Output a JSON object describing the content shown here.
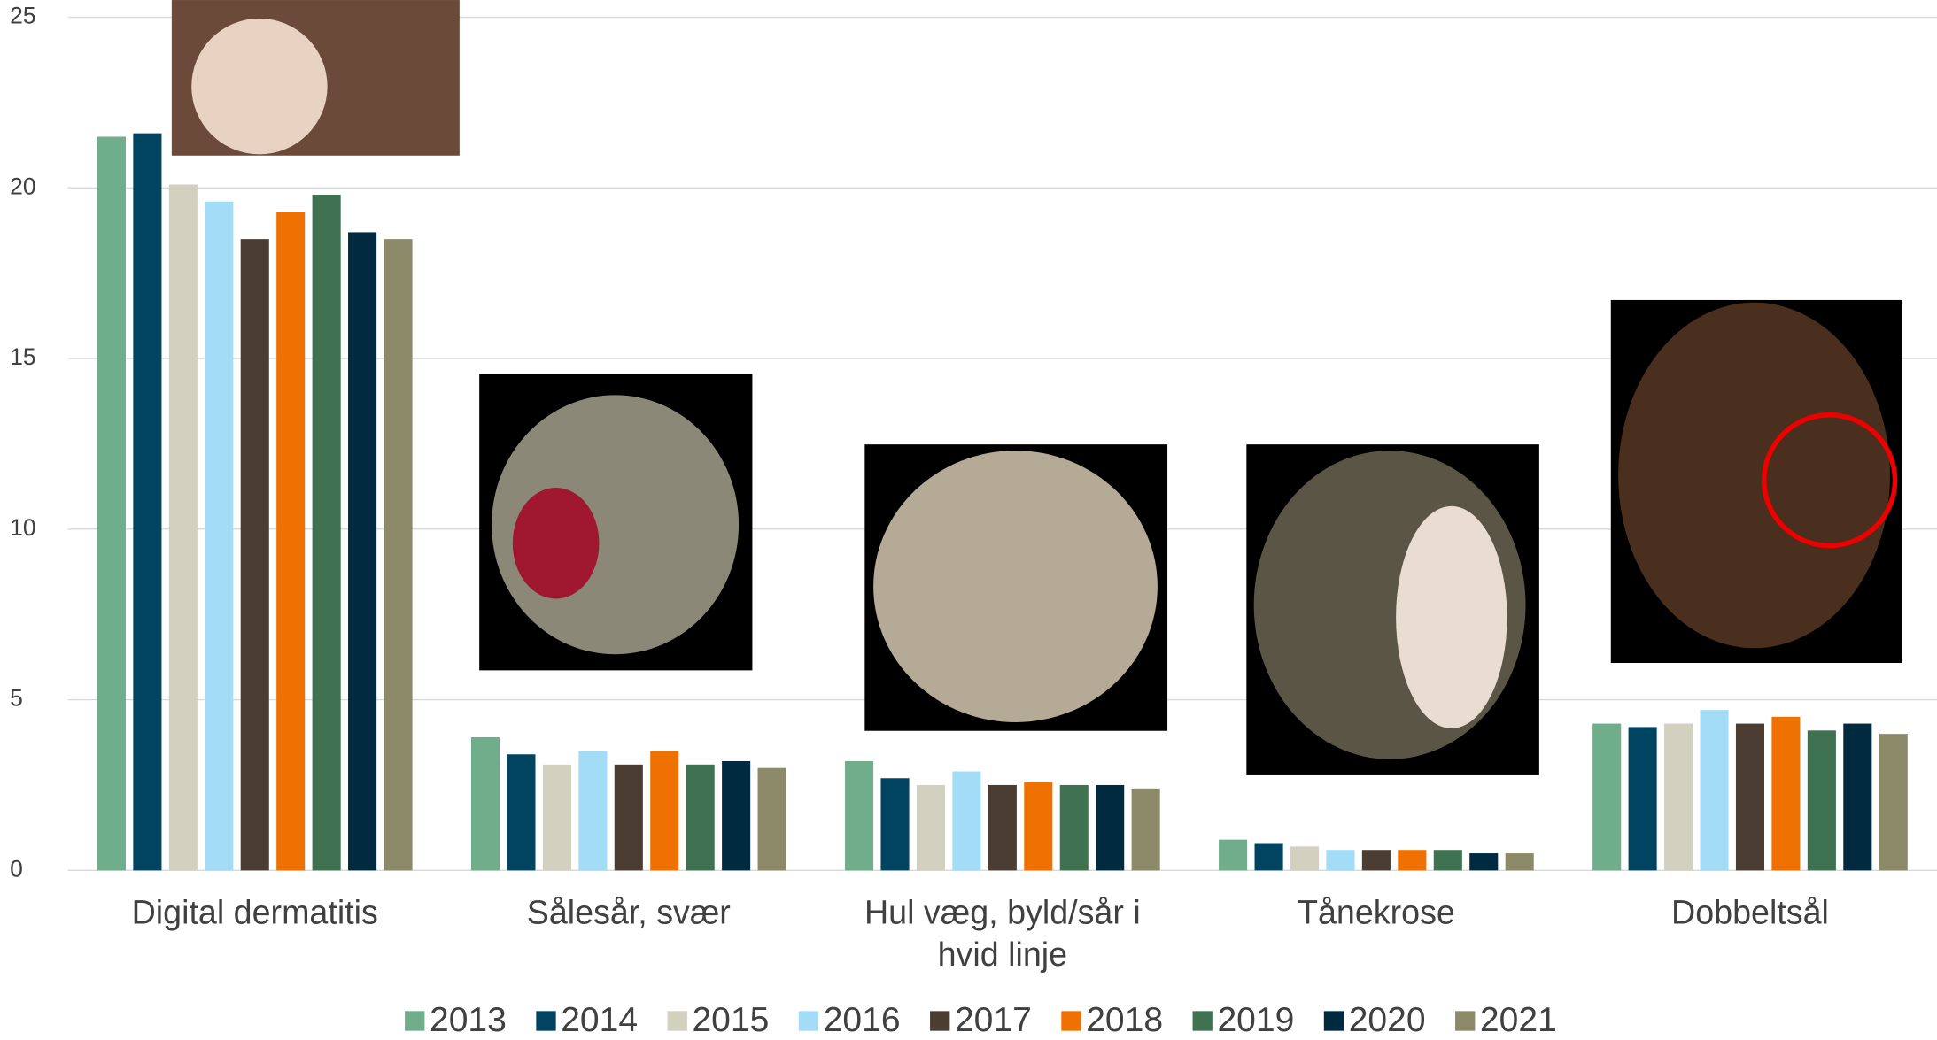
{
  "chart_data": {
    "type": "bar",
    "categories": [
      "Digital dermatitis",
      "Sålesår, svær",
      "Hul væg, byld/sår i hvid linje",
      "Tånekrose",
      "Dobbeltsål"
    ],
    "series": [
      {
        "name": "2013",
        "color": "#70ad8a",
        "values": [
          21.5,
          3.9,
          3.2,
          0.9,
          4.3
        ]
      },
      {
        "name": "2014",
        "color": "#004462",
        "values": [
          21.6,
          3.4,
          2.7,
          0.8,
          4.2
        ]
      },
      {
        "name": "2015",
        "color": "#d2d0bf",
        "values": [
          20.1,
          3.1,
          2.5,
          0.7,
          4.3
        ]
      },
      {
        "name": "2016",
        "color": "#a2dcf6",
        "values": [
          19.6,
          3.5,
          2.9,
          0.6,
          4.7
        ]
      },
      {
        "name": "2017",
        "color": "#4b3d31",
        "values": [
          18.5,
          3.1,
          2.5,
          0.6,
          4.3
        ]
      },
      {
        "name": "2018",
        "color": "#ef7102",
        "values": [
          19.3,
          3.5,
          2.6,
          0.6,
          4.5
        ]
      },
      {
        "name": "2019",
        "color": "#3f7251",
        "values": [
          19.8,
          3.1,
          2.5,
          0.6,
          4.1
        ]
      },
      {
        "name": "2020",
        "color": "#002a40",
        "values": [
          18.7,
          3.2,
          2.5,
          0.5,
          4.3
        ]
      },
      {
        "name": "2021",
        "color": "#8d8a69",
        "values": [
          18.5,
          3.0,
          2.4,
          0.5,
          4.0
        ]
      }
    ],
    "ylim": [
      0,
      25
    ],
    "yticks": [
      0,
      5,
      10,
      15,
      20,
      25
    ],
    "grid": true,
    "legend": "bottom"
  }
}
